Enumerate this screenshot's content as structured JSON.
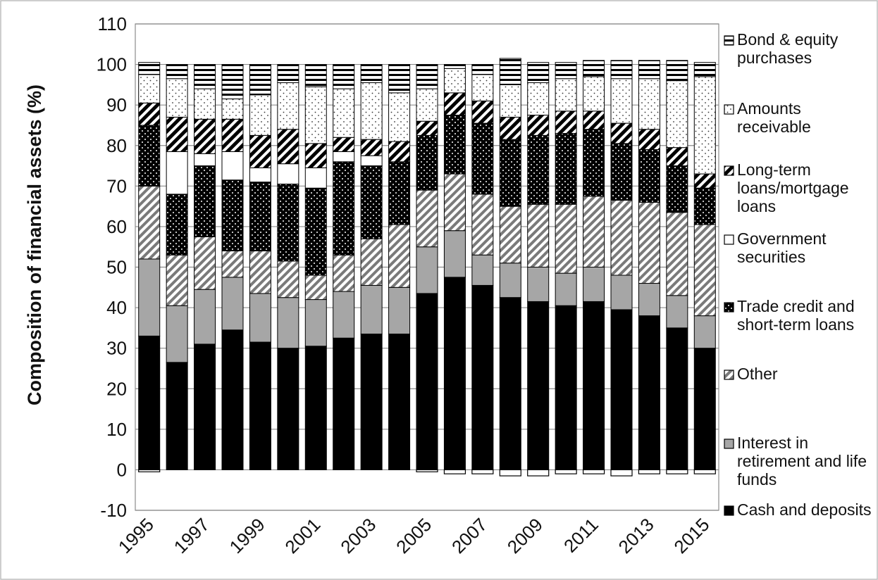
{
  "chart_data": {
    "type": "bar",
    "stacked": true,
    "ylabel": "Composition of financial assets (%)",
    "xlabel": "",
    "ylim": [
      -10,
      110
    ],
    "yticks": [
      -10,
      0,
      10,
      20,
      30,
      40,
      50,
      60,
      70,
      80,
      90,
      100,
      110
    ],
    "grid": true,
    "legend_position": "right",
    "categories": [
      "1995",
      "1996",
      "1997",
      "1998",
      "1999",
      "2000",
      "2001",
      "2002",
      "2003",
      "2004",
      "2005",
      "2006",
      "2007",
      "2008",
      "2009",
      "2010",
      "2011",
      "2012",
      "2013",
      "2014",
      "2015"
    ],
    "x_tick_labels": [
      "1995",
      "1997",
      "1999",
      "2001",
      "2003",
      "2005",
      "2007",
      "2009",
      "2011",
      "2013",
      "2015"
    ],
    "series": [
      {
        "name": "Cash and deposits",
        "values": [
          33,
          26.5,
          31,
          34.5,
          31.5,
          30,
          30.5,
          32.5,
          33.5,
          33.5,
          43.5,
          47.5,
          45.5,
          42.5,
          41.5,
          40.5,
          41.5,
          39.5,
          38,
          35,
          30
        ]
      },
      {
        "name": "Interest in retirement and life funds",
        "values": [
          19,
          14,
          13.5,
          13,
          12,
          12.5,
          11.5,
          11.5,
          12,
          11.5,
          11.5,
          11.5,
          7.5,
          8.5,
          8.5,
          8,
          8.5,
          8.5,
          8,
          8,
          8
        ]
      },
      {
        "name": "Other",
        "values": [
          18,
          12.5,
          13,
          6.5,
          10.5,
          9,
          6,
          9,
          11.5,
          15.5,
          14,
          14,
          15,
          14,
          15.5,
          17,
          17.5,
          18.5,
          20,
          20.5,
          22.5
        ]
      },
      {
        "name": "Trade credit and short-term loans",
        "values": [
          15,
          15,
          17.5,
          17.5,
          17,
          19,
          21.5,
          23,
          18,
          15.5,
          13.5,
          14.5,
          17.5,
          16.5,
          17,
          17.5,
          16.5,
          14,
          13,
          11.5,
          9
        ]
      },
      {
        "name": "Government securities",
        "values": [
          0,
          10.5,
          3,
          7,
          3.5,
          5,
          5,
          2.5,
          2.5,
          0,
          0,
          0,
          0,
          0,
          0,
          0,
          0,
          0,
          0,
          0,
          0
        ]
      },
      {
        "name": "Long-term loans/mortgage loans",
        "values": [
          5.5,
          8.5,
          8.5,
          8,
          8,
          8.5,
          6,
          3.5,
          4,
          5,
          3.5,
          5.5,
          5.5,
          5.5,
          5,
          5.5,
          4.5,
          5,
          5,
          4.5,
          3.5
        ]
      },
      {
        "name": "Amounts receivable",
        "values": [
          7,
          9.5,
          7.5,
          5,
          10,
          11.5,
          14,
          12,
          14,
          12,
          8,
          6,
          6.5,
          8,
          8,
          8,
          8.5,
          11,
          12.5,
          16.5,
          24
        ]
      },
      {
        "name": "Bond & equity purchases",
        "values": [
          3,
          3.5,
          6,
          8.5,
          7.5,
          4.5,
          5.5,
          6,
          4.5,
          7,
          6,
          1,
          2.5,
          6.5,
          5,
          4,
          4,
          4.5,
          4.5,
          5,
          3.5
        ]
      }
    ],
    "negative_segments": [
      0.5,
      0,
      0,
      0,
      0,
      0,
      0,
      0,
      0,
      0,
      0.5,
      1,
      1,
      1.5,
      1.5,
      1,
      1,
      1.5,
      1,
      1,
      1
    ]
  },
  "legend": {
    "items": [
      {
        "label_lines": [
          "Bond & equity",
          "purchases"
        ],
        "pattern": "bond"
      },
      {
        "label_lines": [
          "Amounts",
          "receivable"
        ],
        "pattern": "amounts"
      },
      {
        "label_lines": [
          "Long-term",
          "loans/mortgage",
          "loans"
        ],
        "pattern": "longterm"
      },
      {
        "label_lines": [
          "Government",
          "securities"
        ],
        "pattern": "gov"
      },
      {
        "label_lines": [
          "Trade credit and",
          "short-term loans"
        ],
        "pattern": "trade"
      },
      {
        "label_lines": [
          "Other"
        ],
        "pattern": "other"
      },
      {
        "label_lines": [
          "Interest in",
          "retirement and life",
          "funds"
        ],
        "pattern": "interest"
      },
      {
        "label_lines": [
          "Cash and deposits"
        ],
        "pattern": "cash"
      }
    ]
  }
}
